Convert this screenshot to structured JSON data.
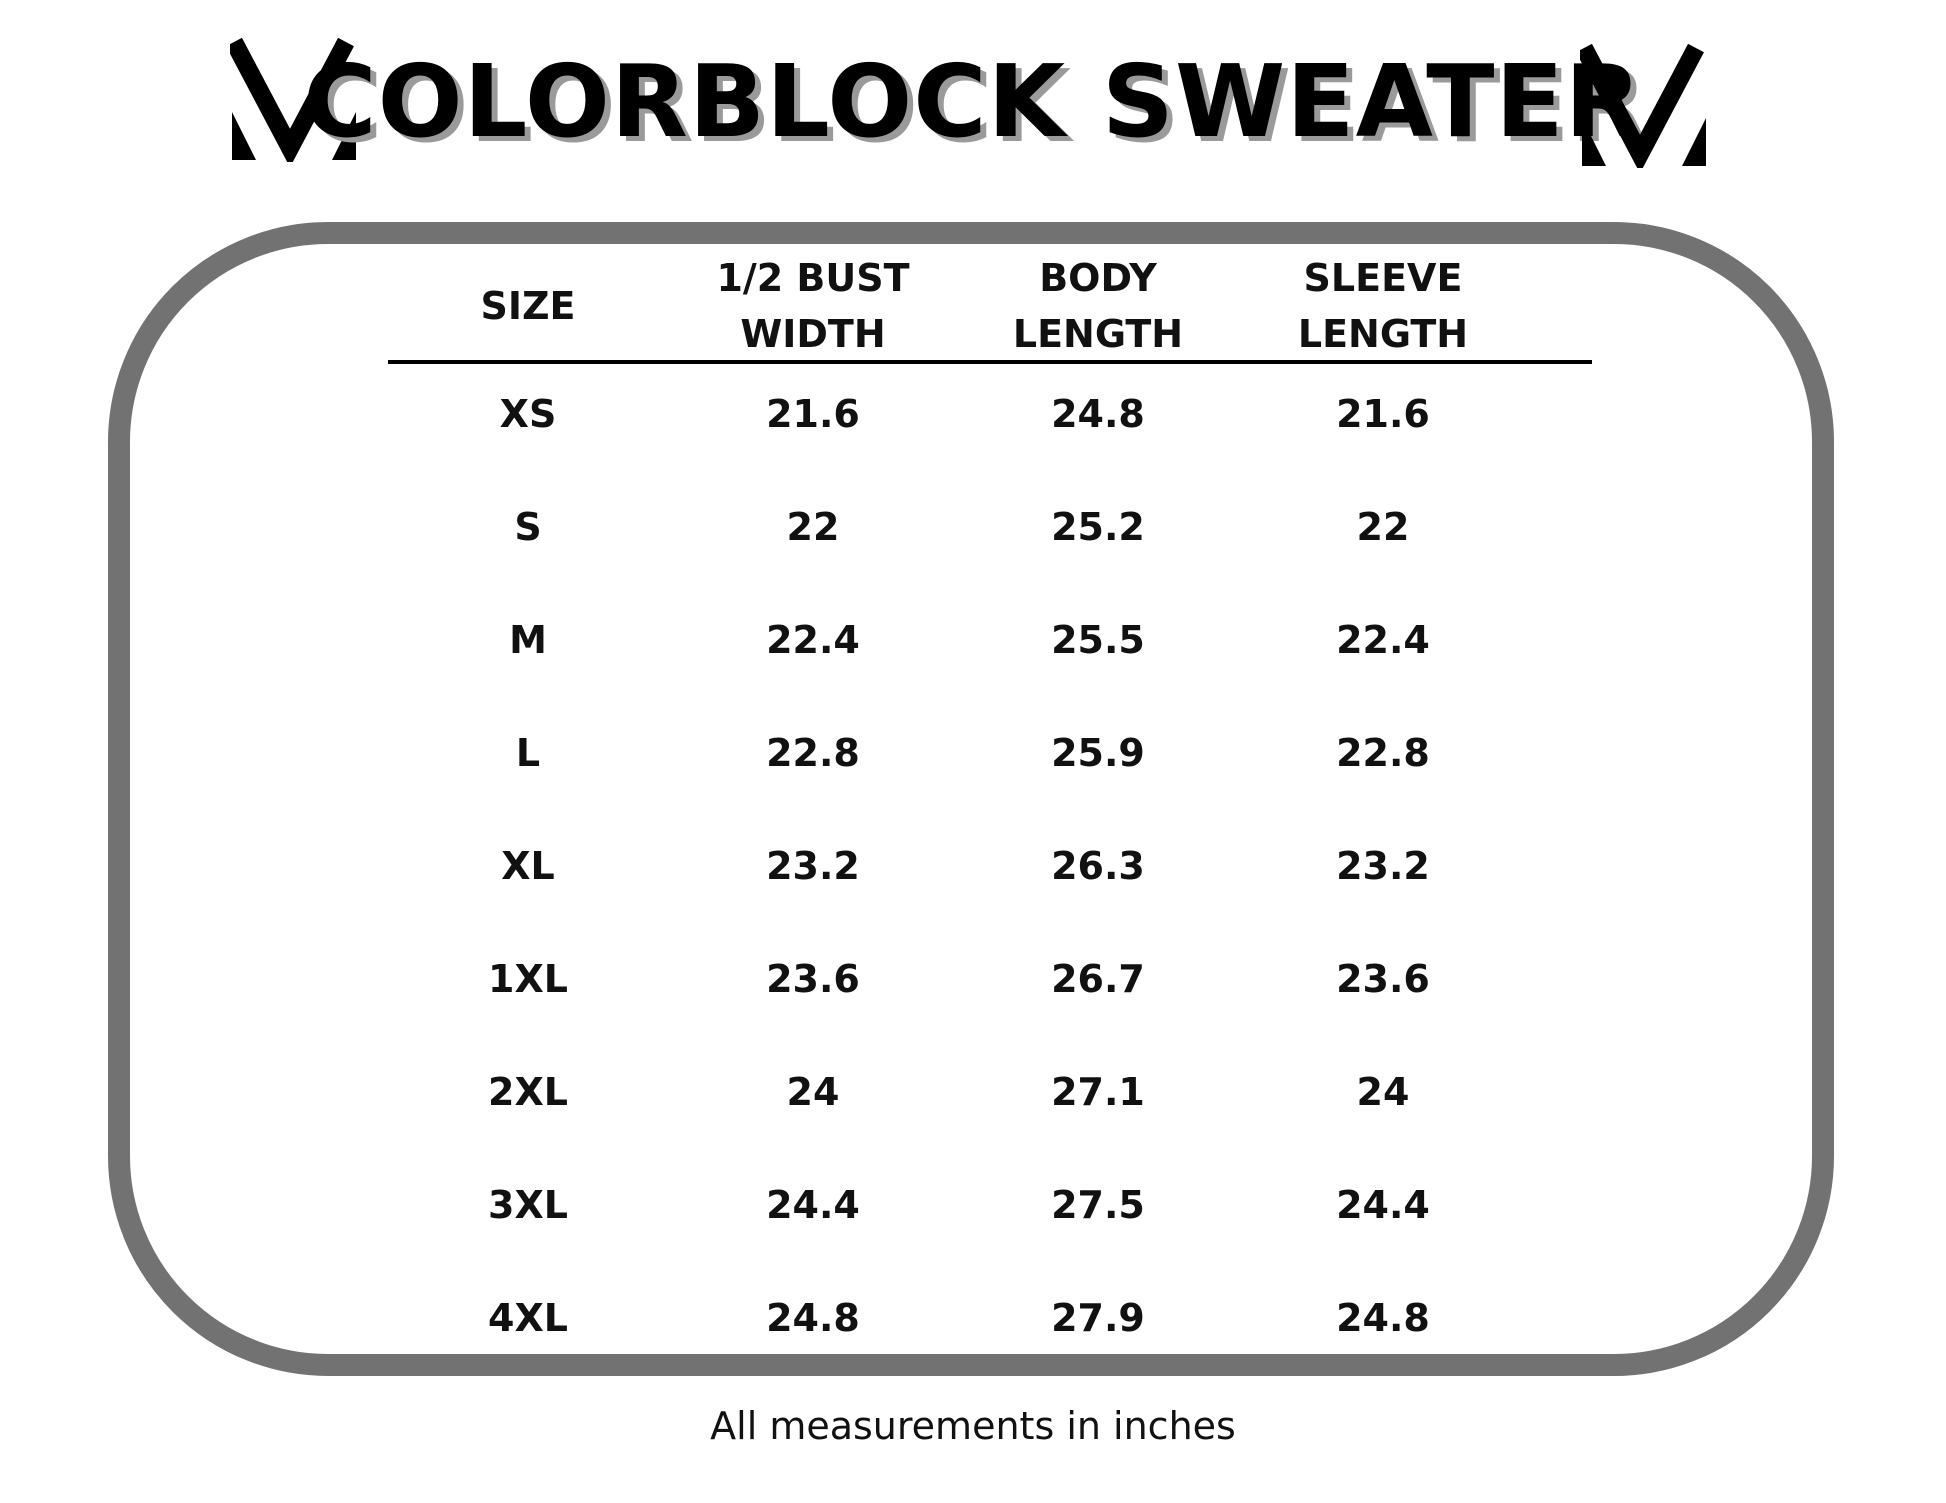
{
  "title": "COLORBLOCK SWEATER",
  "table": {
    "headers": [
      "SIZE",
      "1/2 BUST\nWIDTH",
      "BODY\nLENGTH",
      "SLEEVE\nLENGTH"
    ],
    "rows": [
      [
        "XS",
        "21.6",
        "24.8",
        "21.6"
      ],
      [
        "S",
        "22",
        "25.2",
        "22"
      ],
      [
        "M",
        "22.4",
        "25.5",
        "22.4"
      ],
      [
        "L",
        "22.8",
        "25.9",
        "22.8"
      ],
      [
        "XL",
        "23.2",
        "26.3",
        "23.2"
      ],
      [
        "1XL",
        "23.6",
        "26.7",
        "23.6"
      ],
      [
        "2XL",
        "24",
        "27.1",
        "24"
      ],
      [
        "3XL",
        "24.4",
        "27.5",
        "24.4"
      ],
      [
        "4XL",
        "24.8",
        "27.9",
        "24.8"
      ]
    ]
  },
  "footnote": "All measurements in inches",
  "logo_icon": "v-chevron-logo",
  "colors": {
    "frame": "#727272",
    "title": "#000000",
    "title_shadow": "#9a9a9a",
    "text": "#111111",
    "background": "#ffffff"
  }
}
